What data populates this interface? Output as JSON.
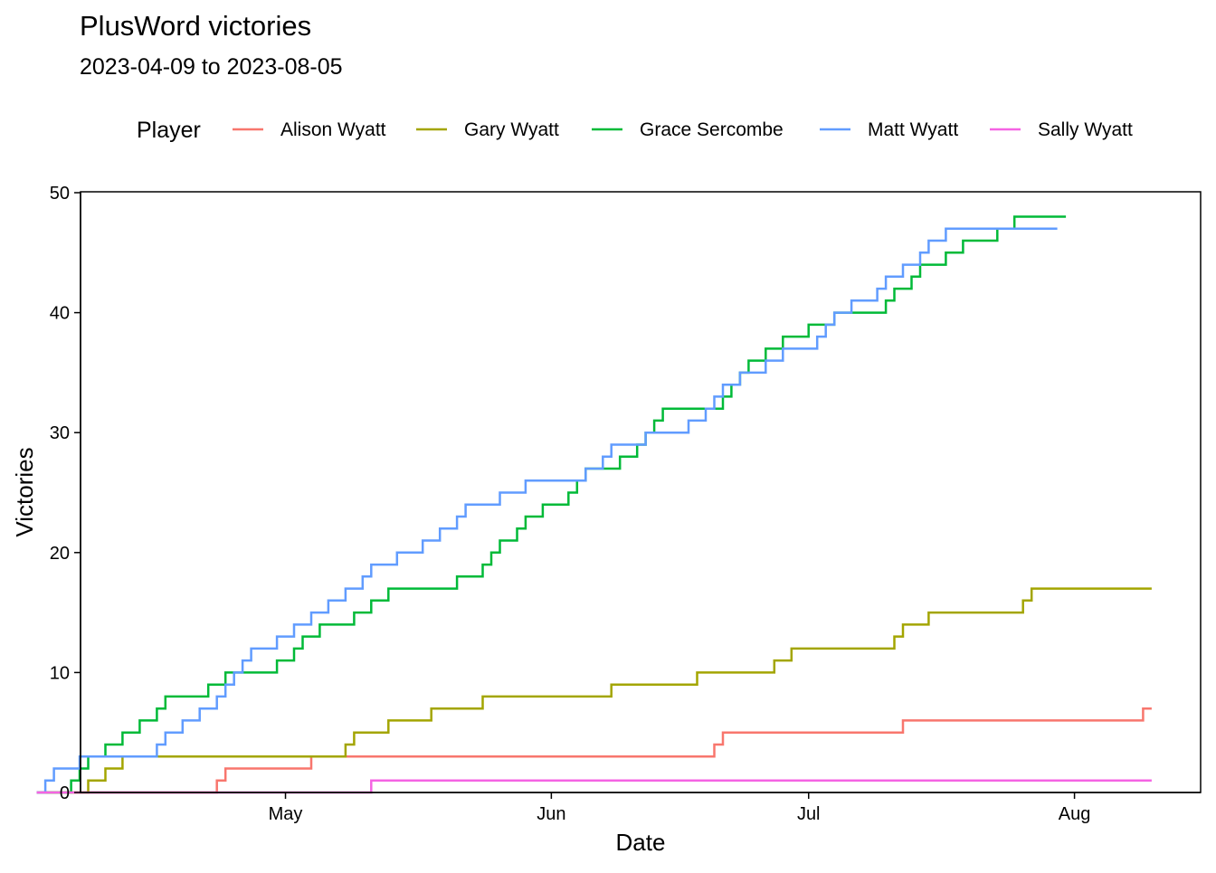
{
  "chart_data": {
    "type": "line",
    "step": true,
    "title": "PlusWord victories",
    "subtitle": "2023-04-09 to 2023-08-05",
    "xlabel": "Date",
    "ylabel": "Victories",
    "legend_title": "Player",
    "legend_position": "top",
    "grid": false,
    "xlim": [
      0,
      118
    ],
    "x_unit": "days since 2023-04-09",
    "ylim": [
      0,
      50
    ],
    "x_ticks": [
      {
        "label": "May",
        "x": 22
      },
      {
        "label": "Jun",
        "x": 53
      },
      {
        "label": "Jul",
        "x": 83
      },
      {
        "label": "Aug",
        "x": 114
      }
    ],
    "y_ticks": [
      0,
      10,
      20,
      30,
      40,
      50
    ],
    "series": [
      {
        "name": "Alison Wyatt",
        "color": "#F8766D",
        "points": [
          [
            -7,
            0
          ],
          [
            14,
            0
          ],
          [
            14,
            1
          ],
          [
            15,
            1
          ],
          [
            15,
            2
          ],
          [
            25,
            2
          ],
          [
            25,
            3
          ],
          [
            72,
            3
          ],
          [
            72,
            4
          ],
          [
            73,
            4
          ],
          [
            73,
            5
          ],
          [
            94,
            5
          ],
          [
            94,
            6
          ],
          [
            122,
            6
          ],
          [
            122,
            7
          ],
          [
            123,
            7
          ]
        ]
      },
      {
        "name": "Gary Wyatt",
        "color": "#A3A500",
        "points": [
          [
            -7,
            0
          ],
          [
            -1,
            0
          ],
          [
            -1,
            1
          ],
          [
            1,
            1
          ],
          [
            1,
            2
          ],
          [
            3,
            2
          ],
          [
            3,
            3
          ],
          [
            29,
            3
          ],
          [
            29,
            4
          ],
          [
            30,
            4
          ],
          [
            30,
            5
          ],
          [
            34,
            5
          ],
          [
            34,
            6
          ],
          [
            39,
            6
          ],
          [
            39,
            7
          ],
          [
            45,
            7
          ],
          [
            45,
            8
          ],
          [
            60,
            8
          ],
          [
            60,
            9
          ],
          [
            70,
            9
          ],
          [
            70,
            10
          ],
          [
            79,
            10
          ],
          [
            79,
            11
          ],
          [
            81,
            11
          ],
          [
            81,
            12
          ],
          [
            93,
            12
          ],
          [
            93,
            13
          ],
          [
            94,
            13
          ],
          [
            94,
            14
          ],
          [
            97,
            14
          ],
          [
            97,
            15
          ],
          [
            108,
            15
          ],
          [
            108,
            16
          ],
          [
            109,
            16
          ],
          [
            109,
            17
          ],
          [
            123,
            17
          ]
        ]
      },
      {
        "name": "Grace Sercombe",
        "color": "#00BA38",
        "points": [
          [
            -7,
            0
          ],
          [
            -3,
            0
          ],
          [
            -3,
            1
          ],
          [
            -2,
            1
          ],
          [
            -2,
            2
          ],
          [
            -1,
            2
          ],
          [
            -1,
            3
          ],
          [
            1,
            3
          ],
          [
            1,
            4
          ],
          [
            3,
            4
          ],
          [
            3,
            5
          ],
          [
            5,
            5
          ],
          [
            5,
            6
          ],
          [
            7,
            6
          ],
          [
            7,
            7
          ],
          [
            8,
            7
          ],
          [
            8,
            8
          ],
          [
            13,
            8
          ],
          [
            13,
            9
          ],
          [
            15,
            9
          ],
          [
            15,
            10
          ],
          [
            21,
            10
          ],
          [
            21,
            11
          ],
          [
            23,
            11
          ],
          [
            23,
            12
          ],
          [
            24,
            12
          ],
          [
            24,
            13
          ],
          [
            26,
            13
          ],
          [
            26,
            14
          ],
          [
            30,
            14
          ],
          [
            30,
            15
          ],
          [
            32,
            15
          ],
          [
            32,
            16
          ],
          [
            34,
            16
          ],
          [
            34,
            17
          ],
          [
            42,
            17
          ],
          [
            42,
            18
          ],
          [
            45,
            18
          ],
          [
            45,
            19
          ],
          [
            46,
            19
          ],
          [
            46,
            20
          ],
          [
            47,
            20
          ],
          [
            47,
            21
          ],
          [
            49,
            21
          ],
          [
            49,
            22
          ],
          [
            50,
            22
          ],
          [
            50,
            23
          ],
          [
            52,
            23
          ],
          [
            52,
            24
          ],
          [
            55,
            24
          ],
          [
            55,
            25
          ],
          [
            56,
            25
          ],
          [
            56,
            26
          ],
          [
            57,
            26
          ],
          [
            57,
            27
          ],
          [
            61,
            27
          ],
          [
            61,
            28
          ],
          [
            63,
            28
          ],
          [
            63,
            29
          ],
          [
            64,
            29
          ],
          [
            64,
            30
          ],
          [
            65,
            30
          ],
          [
            65,
            31
          ],
          [
            66,
            31
          ],
          [
            66,
            32
          ],
          [
            73,
            32
          ],
          [
            73,
            33
          ],
          [
            74,
            33
          ],
          [
            74,
            34
          ],
          [
            75,
            34
          ],
          [
            75,
            35
          ],
          [
            76,
            35
          ],
          [
            76,
            36
          ],
          [
            78,
            36
          ],
          [
            78,
            37
          ],
          [
            80,
            37
          ],
          [
            80,
            38
          ],
          [
            83,
            38
          ],
          [
            83,
            39
          ],
          [
            86,
            39
          ],
          [
            86,
            40
          ],
          [
            92,
            40
          ],
          [
            92,
            41
          ],
          [
            93,
            41
          ],
          [
            93,
            42
          ],
          [
            95,
            42
          ],
          [
            95,
            43
          ],
          [
            96,
            43
          ],
          [
            96,
            44
          ],
          [
            99,
            44
          ],
          [
            99,
            45
          ],
          [
            101,
            45
          ],
          [
            101,
            46
          ],
          [
            105,
            46
          ],
          [
            105,
            47
          ],
          [
            107,
            47
          ],
          [
            107,
            48
          ],
          [
            113,
            48
          ]
        ]
      },
      {
        "name": "Matt Wyatt",
        "color": "#619CFF",
        "points": [
          [
            -7,
            0
          ],
          [
            -6,
            0
          ],
          [
            -6,
            1
          ],
          [
            -5,
            1
          ],
          [
            -5,
            2
          ],
          [
            -2,
            2
          ],
          [
            -2,
            3
          ],
          [
            7,
            3
          ],
          [
            7,
            4
          ],
          [
            8,
            4
          ],
          [
            8,
            5
          ],
          [
            10,
            5
          ],
          [
            10,
            6
          ],
          [
            12,
            6
          ],
          [
            12,
            7
          ],
          [
            14,
            7
          ],
          [
            14,
            8
          ],
          [
            15,
            8
          ],
          [
            15,
            9
          ],
          [
            16,
            9
          ],
          [
            16,
            10
          ],
          [
            17,
            10
          ],
          [
            17,
            11
          ],
          [
            18,
            11
          ],
          [
            18,
            12
          ],
          [
            21,
            12
          ],
          [
            21,
            13
          ],
          [
            23,
            13
          ],
          [
            23,
            14
          ],
          [
            25,
            14
          ],
          [
            25,
            15
          ],
          [
            27,
            15
          ],
          [
            27,
            16
          ],
          [
            29,
            16
          ],
          [
            29,
            17
          ],
          [
            31,
            17
          ],
          [
            31,
            18
          ],
          [
            32,
            18
          ],
          [
            32,
            19
          ],
          [
            35,
            19
          ],
          [
            35,
            20
          ],
          [
            38,
            20
          ],
          [
            38,
            21
          ],
          [
            40,
            21
          ],
          [
            40,
            22
          ],
          [
            42,
            22
          ],
          [
            42,
            23
          ],
          [
            43,
            23
          ],
          [
            43,
            24
          ],
          [
            47,
            24
          ],
          [
            47,
            25
          ],
          [
            50,
            25
          ],
          [
            50,
            26
          ],
          [
            57,
            26
          ],
          [
            57,
            27
          ],
          [
            59,
            27
          ],
          [
            59,
            28
          ],
          [
            60,
            28
          ],
          [
            60,
            29
          ],
          [
            64,
            29
          ],
          [
            64,
            30
          ],
          [
            69,
            30
          ],
          [
            69,
            31
          ],
          [
            71,
            31
          ],
          [
            71,
            32
          ],
          [
            72,
            32
          ],
          [
            72,
            33
          ],
          [
            73,
            33
          ],
          [
            73,
            34
          ],
          [
            75,
            34
          ],
          [
            75,
            35
          ],
          [
            78,
            35
          ],
          [
            78,
            36
          ],
          [
            80,
            36
          ],
          [
            80,
            37
          ],
          [
            84,
            37
          ],
          [
            84,
            38
          ],
          [
            85,
            38
          ],
          [
            85,
            39
          ],
          [
            86,
            39
          ],
          [
            86,
            40
          ],
          [
            88,
            40
          ],
          [
            88,
            41
          ],
          [
            91,
            41
          ],
          [
            91,
            42
          ],
          [
            92,
            42
          ],
          [
            92,
            43
          ],
          [
            94,
            43
          ],
          [
            94,
            44
          ],
          [
            96,
            44
          ],
          [
            96,
            45
          ],
          [
            97,
            45
          ],
          [
            97,
            46
          ],
          [
            99,
            46
          ],
          [
            99,
            47
          ],
          [
            112,
            47
          ]
        ]
      },
      {
        "name": "Sally Wyatt",
        "color": "#F564E3",
        "points": [
          [
            -7,
            0
          ],
          [
            32,
            0
          ],
          [
            32,
            1
          ],
          [
            123,
            1
          ]
        ]
      }
    ]
  }
}
